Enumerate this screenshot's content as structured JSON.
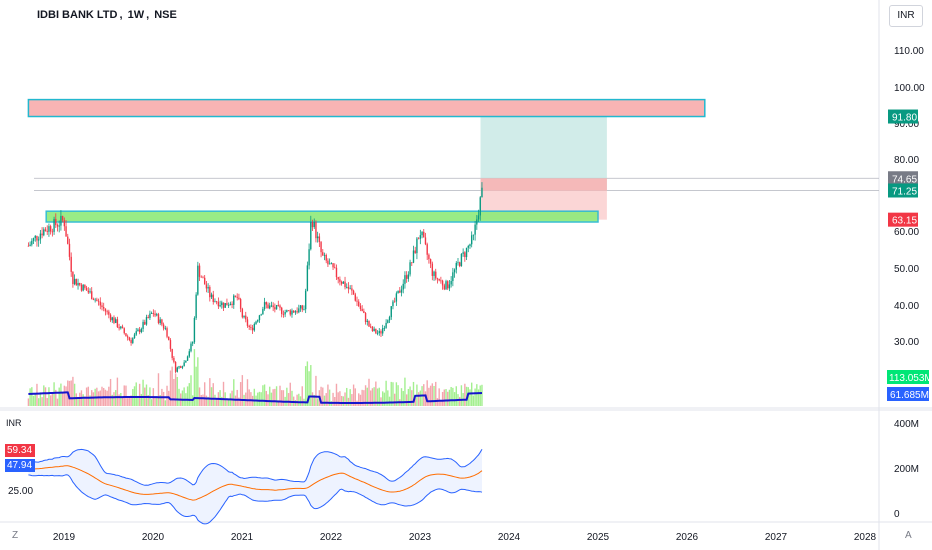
{
  "header": {
    "symbol": "IDBI BANK LTD",
    "interval": "1W",
    "exchange": "NSE",
    "currency_button": "INR"
  },
  "indicator_pane": {
    "currency_label": "INR",
    "price_tick": "25.00",
    "upper_value": "59.34",
    "lower_value": "47.94",
    "upper_color": "#f23645",
    "lower_color": "#2962ff"
  },
  "corner_buttons": {
    "left": "Z",
    "right": "A"
  },
  "chart_data": {
    "type": "candlestick",
    "title": "IDBI BANK LTD, 1W, NSE",
    "price_axis": {
      "ticks": [
        "110.00",
        "100.00",
        "80.00",
        "60.00",
        "50.00",
        "40.00",
        "30.00"
      ],
      "partially_hidden_tick": "90.00",
      "range": [
        18,
        118
      ]
    },
    "volume_axis": {
      "ticks": [
        "400M",
        "200M",
        "0"
      ]
    },
    "x_axis": {
      "ticks": [
        "2019",
        "2020",
        "2021",
        "2022",
        "2023",
        "2024",
        "2025",
        "2026",
        "2027",
        "2028"
      ]
    },
    "price_path": [
      {
        "year": 2018.6,
        "price": 56
      },
      {
        "year": 2018.75,
        "price": 60
      },
      {
        "year": 2019.0,
        "price": 63
      },
      {
        "year": 2019.1,
        "price": 47
      },
      {
        "year": 2019.3,
        "price": 43
      },
      {
        "year": 2019.55,
        "price": 36
      },
      {
        "year": 2019.75,
        "price": 30
      },
      {
        "year": 2020.0,
        "price": 38
      },
      {
        "year": 2020.15,
        "price": 33
      },
      {
        "year": 2020.25,
        "price": 22
      },
      {
        "year": 2020.35,
        "price": 24
      },
      {
        "year": 2020.45,
        "price": 30
      },
      {
        "year": 2020.5,
        "price": 50
      },
      {
        "year": 2020.65,
        "price": 42
      },
      {
        "year": 2020.8,
        "price": 40
      },
      {
        "year": 2020.95,
        "price": 42
      },
      {
        "year": 2021.0,
        "price": 37
      },
      {
        "year": 2021.1,
        "price": 33
      },
      {
        "year": 2021.25,
        "price": 40
      },
      {
        "year": 2021.5,
        "price": 38
      },
      {
        "year": 2021.7,
        "price": 39
      },
      {
        "year": 2021.78,
        "price": 64
      },
      {
        "year": 2021.9,
        "price": 53
      },
      {
        "year": 2022.1,
        "price": 47
      },
      {
        "year": 2022.25,
        "price": 43
      },
      {
        "year": 2022.45,
        "price": 33
      },
      {
        "year": 2022.55,
        "price": 32
      },
      {
        "year": 2022.7,
        "price": 40
      },
      {
        "year": 2022.9,
        "price": 51
      },
      {
        "year": 2023.0,
        "price": 60
      },
      {
        "year": 2023.15,
        "price": 48
      },
      {
        "year": 2023.3,
        "price": 45
      },
      {
        "year": 2023.45,
        "price": 52
      },
      {
        "year": 2023.6,
        "price": 58
      },
      {
        "year": 2023.65,
        "price": 65
      },
      {
        "year": 2023.7,
        "price": 71.25
      }
    ],
    "resistance_zone": {
      "start": 2018.6,
      "end": 2026.2,
      "bottom": 91.8,
      "top": 96.5,
      "color": "#f8b4b4"
    },
    "support_zone": {
      "start": 2018.8,
      "end": 2025.0,
      "bottom": 62.5,
      "top": 65.5,
      "color": "#8fea7a"
    },
    "position_tool": {
      "start": 2023.68,
      "end": 2025.1,
      "entry": 71.25,
      "target": 91.8,
      "stop": 63.15,
      "profit_color": "#b2dfdb",
      "loss_color": "#f8b4b4"
    },
    "horizontal_lines": [
      74.65,
      71.25
    ],
    "price_labels": [
      {
        "text": "91.80",
        "value": 91.8,
        "color": "#089981"
      },
      {
        "text": "74.65",
        "value": 74.65,
        "color": "#787b86"
      },
      {
        "text": "71.25",
        "value": 71.25,
        "color": "#089981"
      },
      {
        "text": "63.15",
        "value": 63.15,
        "color": "#f23645"
      }
    ],
    "volume_labels": [
      {
        "text": "113.053M",
        "color": "#00e676"
      },
      {
        "text": "61.685M",
        "color": "#2962ff"
      }
    ],
    "volume_ma_color": "#1515cc",
    "bands_color": "#2962ff",
    "basis_color": "#ff6d00",
    "up_color": "#089981",
    "down_color": "#f23645"
  }
}
